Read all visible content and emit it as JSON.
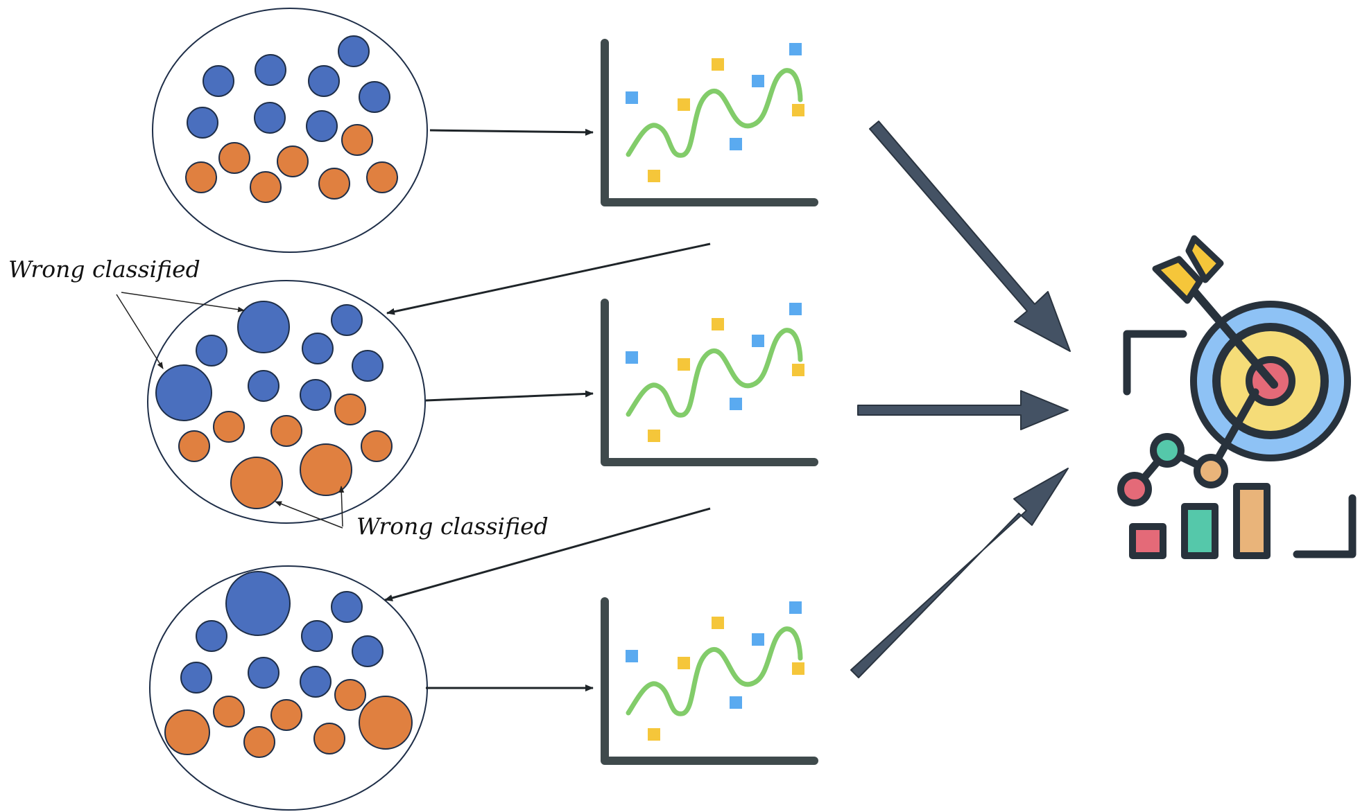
{
  "annotations": {
    "wrong_classified_top": "Wrong classified",
    "wrong_classified_bottom": "Wrong classified"
  },
  "colors": {
    "class_a": "#4a6fbe",
    "class_b": "#e08040",
    "arrow": "#445264",
    "chart_axis": "#3f4a4c",
    "curve": "#82cc6a",
    "point_blue": "#5aaaf0",
    "point_yellow": "#f5c63a",
    "target_outer": "#8ec2f5",
    "target_middle": "#f5dc78",
    "target_center": "#e46a78",
    "bar_red": "#e46a78",
    "bar_teal": "#55c8aa",
    "bar_tan": "#e9b47a",
    "icon_outline": "#28323c"
  },
  "icons": [
    "sample-set",
    "weak-learner-chart",
    "target-with-arrow-icon",
    "bar-chart-icon"
  ]
}
